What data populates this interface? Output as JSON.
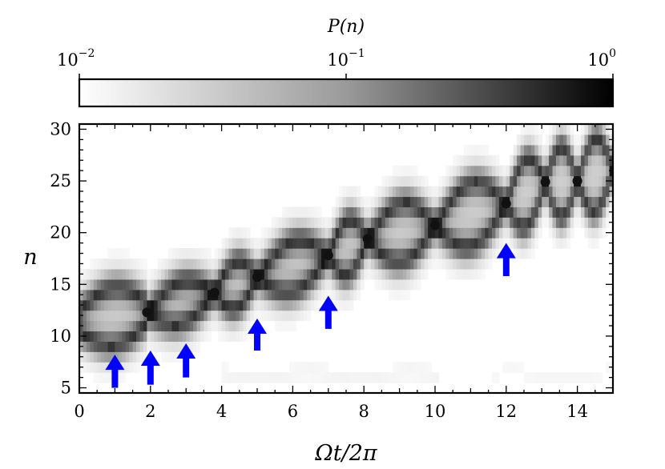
{
  "chart_data": {
    "type": "heatmap",
    "title": "",
    "colorbar": {
      "label": "P(n)",
      "scale": "log",
      "range": [
        0.01,
        1
      ],
      "colormap": "gray_r",
      "ticks": [
        {
          "value": 0.01,
          "base": "10",
          "exp": "−2"
        },
        {
          "value": 0.1,
          "base": "10",
          "exp": "−1"
        },
        {
          "value": 1,
          "base": "10",
          "exp": "0"
        }
      ]
    },
    "xlabel": "Ωt/2π",
    "ylabel": "n",
    "xlim": [
      0,
      15
    ],
    "ylim": [
      4.5,
      30.5
    ],
    "xticks": [
      0,
      2,
      4,
      6,
      8,
      10,
      12,
      14
    ],
    "yticks": [
      5,
      10,
      15,
      20,
      25,
      30
    ],
    "description_series": {
      "name": "main band (two oscillating branches)",
      "center_n_start": 11.5,
      "center_n_end": 25,
      "crossing_points": [
        {
          "x": 1.9,
          "n": 12.3
        },
        {
          "x": 3.8,
          "n": 14.2
        },
        {
          "x": 5.0,
          "n": 15.7
        },
        {
          "x": 7.0,
          "n": 17.8
        },
        {
          "x": 8.1,
          "n": 19.4
        },
        {
          "x": 10.0,
          "n": 20.7
        },
        {
          "x": 12.0,
          "n": 22.8
        },
        {
          "x": 13.1,
          "n": 24.9
        },
        {
          "x": 14.0,
          "n": 25.0
        }
      ]
    },
    "annotations": [
      {
        "type": "arrow",
        "x": 1,
        "n_tip": 8.2,
        "n_tail": 5,
        "color": "#0000ff"
      },
      {
        "type": "arrow",
        "x": 2,
        "n_tip": 8.6,
        "n_tail": 5.3,
        "color": "#0000ff"
      },
      {
        "type": "arrow",
        "x": 3,
        "n_tip": 9.3,
        "n_tail": 6.0,
        "color": "#0000ff"
      },
      {
        "type": "arrow",
        "x": 5,
        "n_tip": 11.7,
        "n_tail": 8.6,
        "color": "#0000ff"
      },
      {
        "type": "arrow",
        "x": 7,
        "n_tip": 13.9,
        "n_tail": 10.7,
        "color": "#0000ff"
      },
      {
        "type": "arrow",
        "x": 12,
        "n_tip": 19.0,
        "n_tail": 15.8,
        "color": "#0000ff"
      }
    ]
  }
}
